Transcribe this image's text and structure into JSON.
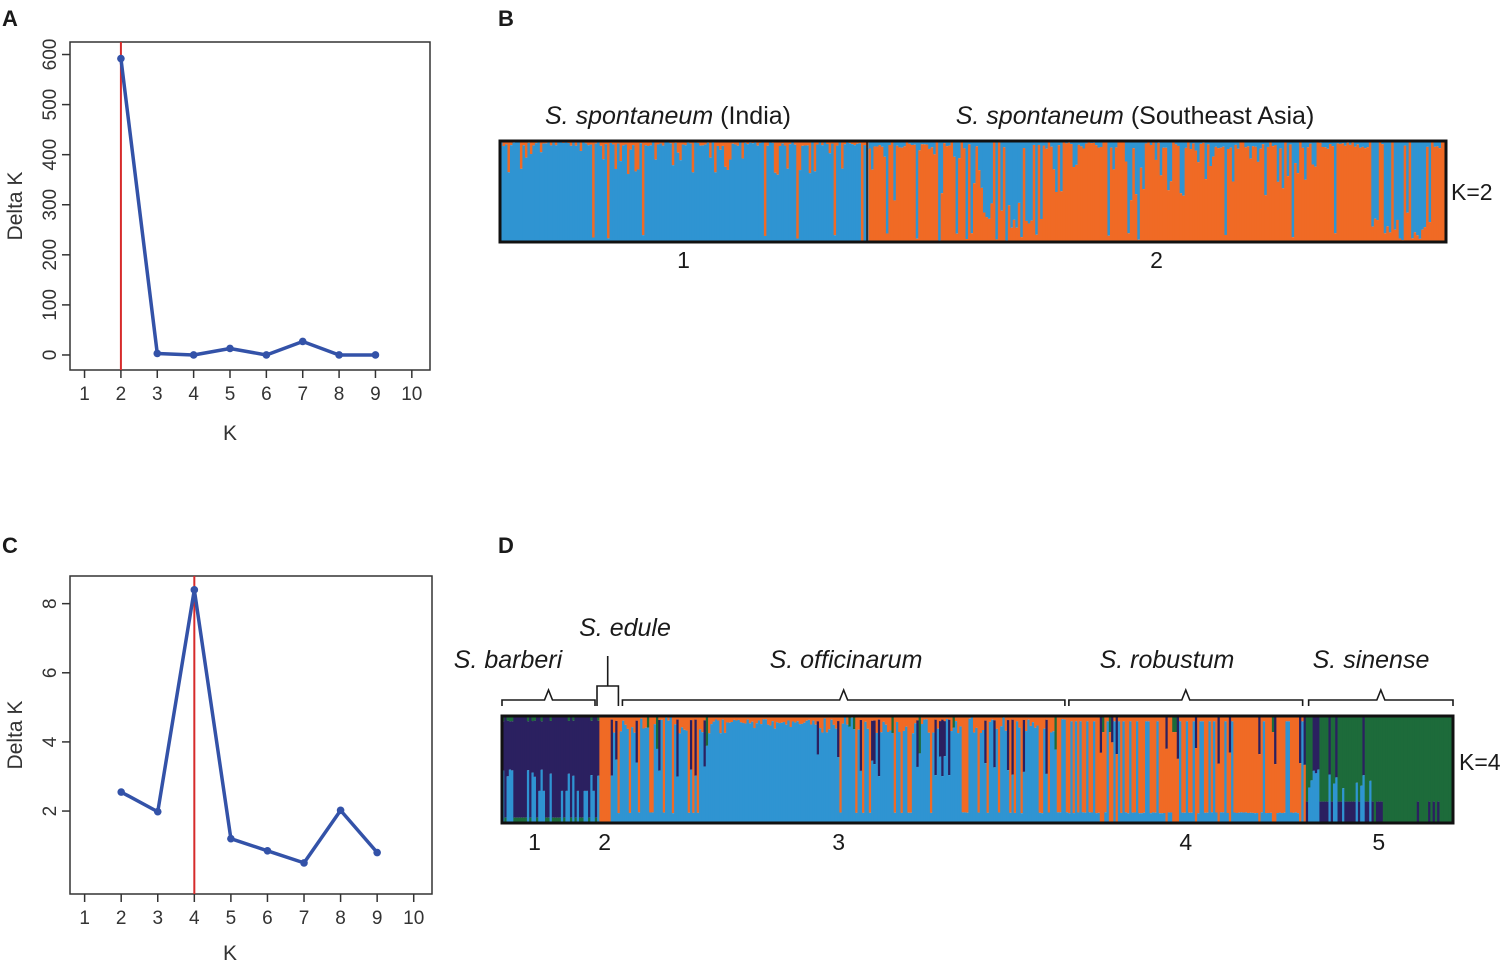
{
  "figure": {
    "colors": {
      "line": "#3352a8",
      "point": "#3352a8",
      "marker_line": "#d62b2b",
      "axis": "#333333",
      "blue": "#2f94d2",
      "orange": "#f06a25",
      "navy": "#2b2060",
      "green": "#1d6b3a",
      "frame": "#111111"
    }
  },
  "chart_data": [
    {
      "panel": "A",
      "type": "line",
      "x": [
        2,
        3,
        4,
        5,
        6,
        7,
        8,
        9
      ],
      "y": [
        592,
        3,
        0,
        13,
        0,
        27,
        0,
        0
      ],
      "xlabel": "K",
      "ylabel": "Delta K",
      "xlim": [
        0.6,
        10.5
      ],
      "ylim": [
        -30,
        625
      ],
      "xticks": [
        1,
        2,
        3,
        4,
        5,
        6,
        7,
        8,
        9,
        10
      ],
      "yticks": [
        0,
        100,
        200,
        300,
        400,
        500,
        600
      ],
      "vline_x": 2
    },
    {
      "panel": "B",
      "type": "bar",
      "k_label": "K=2",
      "components": [
        "blue",
        "orange"
      ],
      "group_labels": [
        {
          "italic": "S. spontaneum",
          "rest": " (India)"
        },
        {
          "italic": "S. spontaneum",
          "rest": " (Southeast Asia)"
        }
      ],
      "cluster_numbers": [
        "1",
        "2"
      ],
      "cluster_fractions": [
        0.388,
        0.612
      ]
    },
    {
      "panel": "C",
      "type": "line",
      "x": [
        2,
        3,
        4,
        5,
        6,
        7,
        8,
        9
      ],
      "y": [
        2.55,
        1.98,
        8.4,
        1.2,
        0.85,
        0.5,
        2.02,
        0.8
      ],
      "xlabel": "K",
      "ylabel": "Delta K",
      "xlim": [
        0.6,
        10.5
      ],
      "ylim": [
        -0.4,
        8.8
      ],
      "xticks": [
        1,
        2,
        3,
        4,
        5,
        6,
        7,
        8,
        9,
        10
      ],
      "yticks": [
        2,
        4,
        6,
        8
      ],
      "vline_x": 4
    },
    {
      "panel": "D",
      "type": "bar",
      "k_label": "K=4",
      "components": [
        "navy",
        "blue",
        "orange",
        "green"
      ],
      "group_labels": [
        {
          "italic": "S. barberi",
          "rest": ""
        },
        {
          "italic": "S. edule",
          "rest": ""
        },
        {
          "italic": "S. officinarum",
          "rest": ""
        },
        {
          "italic": "S. robustum",
          "rest": ""
        },
        {
          "italic": "S. sinense",
          "rest": ""
        }
      ],
      "cluster_numbers": [
        "1",
        "2",
        "3",
        "4",
        "5"
      ],
      "cluster_fractions": [
        0.102,
        0.012,
        0.48,
        0.25,
        0.156
      ]
    }
  ]
}
